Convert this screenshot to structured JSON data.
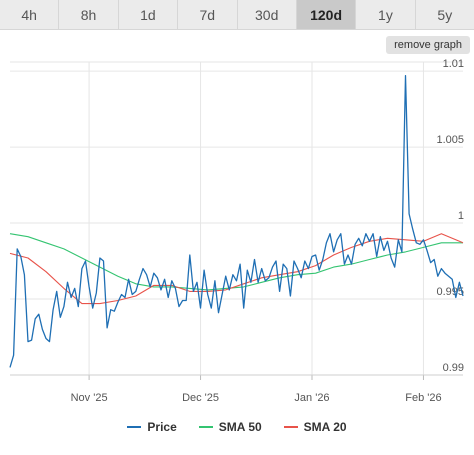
{
  "tabs": [
    {
      "label": "4h"
    },
    {
      "label": "8h"
    },
    {
      "label": "1d"
    },
    {
      "label": "7d"
    },
    {
      "label": "30d"
    },
    {
      "label": "120d",
      "active": true
    },
    {
      "label": "1y"
    },
    {
      "label": "5y"
    }
  ],
  "remove_graph_label": "remove graph",
  "colors": {
    "price": "#1f6fb4",
    "sma50": "#34c471",
    "sma20": "#e8534a"
  },
  "chart_data": {
    "type": "line",
    "x_ticks": [
      {
        "day": 22,
        "label": "Nov '25"
      },
      {
        "day": 53,
        "label": "Dec '25"
      },
      {
        "day": 84,
        "label": "Jan '26"
      },
      {
        "day": 115,
        "label": "Feb '26"
      }
    ],
    "y_ticks": [
      0.99,
      0.995,
      1,
      1.005,
      1.01
    ],
    "xlim": [
      0,
      126
    ],
    "ylim": [
      0.99,
      1.0106
    ],
    "grid": true,
    "series": [
      {
        "name": "Price",
        "key": "price",
        "values": [
          [
            0,
            0.9905
          ],
          [
            1,
            0.9913
          ],
          [
            2,
            0.9983
          ],
          [
            3,
            0.9978
          ],
          [
            4,
            0.9966
          ],
          [
            5,
            0.9922
          ],
          [
            6,
            0.9923
          ],
          [
            7,
            0.9937
          ],
          [
            8,
            0.994
          ],
          [
            9,
            0.993
          ],
          [
            10,
            0.9924
          ],
          [
            11,
            0.9922
          ],
          [
            12,
            0.9943
          ],
          [
            13,
            0.9955
          ],
          [
            14,
            0.9938
          ],
          [
            15,
            0.9945
          ],
          [
            16,
            0.9961
          ],
          [
            17,
            0.9951
          ],
          [
            18,
            0.9957
          ],
          [
            19,
            0.9945
          ],
          [
            20,
            0.997
          ],
          [
            21,
            0.9975
          ],
          [
            22,
            0.9958
          ],
          [
            23,
            0.9944
          ],
          [
            24,
            0.9954
          ],
          [
            25,
            0.9977
          ],
          [
            26,
            0.9975
          ],
          [
            27,
            0.9931
          ],
          [
            28,
            0.9943
          ],
          [
            29,
            0.9942
          ],
          [
            30,
            0.9948
          ],
          [
            31,
            0.9953
          ],
          [
            32,
            0.9951
          ],
          [
            33,
            0.9963
          ],
          [
            34,
            0.9953
          ],
          [
            35,
            0.9955
          ],
          [
            36,
            0.9963
          ],
          [
            37,
            0.997
          ],
          [
            38,
            0.9966
          ],
          [
            39,
            0.9958
          ],
          [
            40,
            0.9967
          ],
          [
            41,
            0.9964
          ],
          [
            42,
            0.9956
          ],
          [
            43,
            0.9963
          ],
          [
            44,
            0.9951
          ],
          [
            45,
            0.9962
          ],
          [
            46,
            0.9957
          ],
          [
            47,
            0.9945
          ],
          [
            48,
            0.9949
          ],
          [
            49,
            0.9949
          ],
          [
            50,
            0.9979
          ],
          [
            51,
            0.9955
          ],
          [
            52,
            0.9961
          ],
          [
            53,
            0.9944
          ],
          [
            54,
            0.9969
          ],
          [
            55,
            0.9953
          ],
          [
            56,
            0.9944
          ],
          [
            57,
            0.9962
          ],
          [
            58,
            0.9941
          ],
          [
            59,
            0.9953
          ],
          [
            60,
            0.9965
          ],
          [
            61,
            0.9956
          ],
          [
            62,
            0.9966
          ],
          [
            63,
            0.9962
          ],
          [
            64,
            0.9973
          ],
          [
            65,
            0.9944
          ],
          [
            66,
            0.9969
          ],
          [
            67,
            0.9961
          ],
          [
            68,
            0.9976
          ],
          [
            69,
            0.9961
          ],
          [
            70,
            0.997
          ],
          [
            71,
            0.9962
          ],
          [
            72,
            0.9964
          ],
          [
            73,
            0.9971
          ],
          [
            74,
            0.9975
          ],
          [
            75,
            0.9955
          ],
          [
            76,
            0.9973
          ],
          [
            77,
            0.997
          ],
          [
            78,
            0.9952
          ],
          [
            79,
            0.9975
          ],
          [
            80,
            0.997
          ],
          [
            81,
            0.9964
          ],
          [
            82,
            0.9975
          ],
          [
            83,
            0.997
          ],
          [
            84,
            0.9978
          ],
          [
            85,
            0.9979
          ],
          [
            86,
            0.9969
          ],
          [
            87,
            0.9976
          ],
          [
            88,
            0.9987
          ],
          [
            89,
            0.9993
          ],
          [
            90,
            0.9981
          ],
          [
            91,
            0.9989
          ],
          [
            92,
            0.9993
          ],
          [
            93,
            0.9973
          ],
          [
            94,
            0.9979
          ],
          [
            95,
            0.9973
          ],
          [
            96,
            0.9986
          ],
          [
            97,
            0.999
          ],
          [
            98,
            0.9985
          ],
          [
            99,
            0.9993
          ],
          [
            100,
            0.9988
          ],
          [
            101,
            0.9993
          ],
          [
            102,
            0.9978
          ],
          [
            103,
            0.9991
          ],
          [
            104,
            0.9982
          ],
          [
            105,
            0.9988
          ],
          [
            106,
            0.9977
          ],
          [
            107,
            0.9971
          ],
          [
            108,
            0.9989
          ],
          [
            109,
            0.9981
          ],
          [
            110,
            1.0097
          ],
          [
            111,
            1.0006
          ],
          [
            112,
            0.9996
          ],
          [
            113,
            0.9987
          ],
          [
            114,
            0.9986
          ],
          [
            115,
            0.9989
          ],
          [
            116,
            0.9982
          ],
          [
            117,
            0.9974
          ],
          [
            118,
            0.9976
          ],
          [
            119,
            0.9965
          ],
          [
            120,
            0.997
          ],
          [
            121,
            0.9967
          ],
          [
            122,
            0.9965
          ],
          [
            123,
            0.9963
          ],
          [
            124,
            0.9951
          ],
          [
            125,
            0.9961
          ],
          [
            126,
            0.9952
          ]
        ]
      },
      {
        "name": "SMA 50",
        "key": "sma50",
        "values": [
          [
            0,
            0.9993
          ],
          [
            5,
            0.9991
          ],
          [
            10,
            0.9987
          ],
          [
            15,
            0.9983
          ],
          [
            20,
            0.9977
          ],
          [
            25,
            0.9971
          ],
          [
            30,
            0.9965
          ],
          [
            35,
            0.996
          ],
          [
            40,
            0.9958
          ],
          [
            45,
            0.9958
          ],
          [
            50,
            0.9957
          ],
          [
            55,
            0.9956
          ],
          [
            60,
            0.9957
          ],
          [
            65,
            0.9958
          ],
          [
            70,
            0.9961
          ],
          [
            75,
            0.9964
          ],
          [
            80,
            0.9966
          ],
          [
            85,
            0.9967
          ],
          [
            90,
            0.9971
          ],
          [
            95,
            0.9973
          ],
          [
            100,
            0.9976
          ],
          [
            105,
            0.9979
          ],
          [
            110,
            0.9981
          ],
          [
            115,
            0.9984
          ],
          [
            120,
            0.9987
          ],
          [
            126,
            0.9987
          ]
        ]
      },
      {
        "name": "SMA 20",
        "key": "sma20",
        "values": [
          [
            0,
            0.998
          ],
          [
            5,
            0.9977
          ],
          [
            10,
            0.9968
          ],
          [
            15,
            0.9957
          ],
          [
            20,
            0.9947
          ],
          [
            25,
            0.9947
          ],
          [
            30,
            0.9949
          ],
          [
            35,
            0.9952
          ],
          [
            40,
            0.9959
          ],
          [
            45,
            0.9959
          ],
          [
            50,
            0.9955
          ],
          [
            55,
            0.9955
          ],
          [
            60,
            0.9956
          ],
          [
            65,
            0.996
          ],
          [
            70,
            0.9964
          ],
          [
            75,
            0.9966
          ],
          [
            80,
            0.9968
          ],
          [
            85,
            0.9972
          ],
          [
            90,
            0.9979
          ],
          [
            95,
            0.9984
          ],
          [
            100,
            0.9988
          ],
          [
            105,
            0.999
          ],
          [
            110,
            0.9989
          ],
          [
            115,
            0.9988
          ],
          [
            120,
            0.9993
          ],
          [
            126,
            0.9987
          ]
        ]
      }
    ]
  }
}
